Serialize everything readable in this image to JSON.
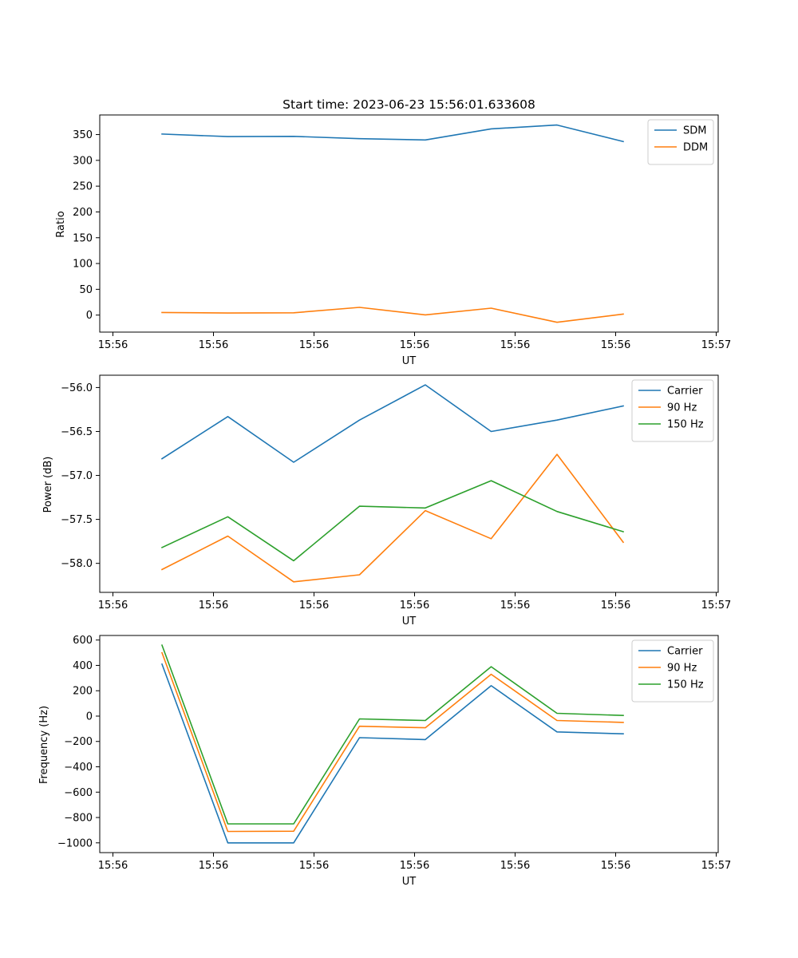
{
  "chart_data": [
    {
      "type": "line",
      "title": "Start time: 2023-06-23 15:56:01.633608",
      "xlabel": "UT",
      "ylabel": "Ratio",
      "x_tick_labels": [
        "15:56",
        "15:56",
        "15:56",
        "15:56",
        "15:56",
        "15:56",
        "15:57"
      ],
      "yticks": [
        0,
        50,
        100,
        150,
        200,
        250,
        300,
        350
      ],
      "ylim": [
        -33,
        388
      ],
      "legend_position": "upper-right",
      "series": [
        {
          "name": "SDM",
          "color": "#1f77b4",
          "values": [
            351,
            346,
            346.5,
            342,
            339.5,
            361,
            368.5,
            336.5
          ]
        },
        {
          "name": "DDM",
          "color": "#ff7f0e",
          "values": [
            5,
            4,
            4.5,
            15,
            0.5,
            13.5,
            -14,
            2
          ]
        }
      ]
    },
    {
      "type": "line",
      "title": "",
      "xlabel": "UT",
      "ylabel": "Power (dB)",
      "x_tick_labels": [
        "15:56",
        "15:56",
        "15:56",
        "15:56",
        "15:56",
        "15:56",
        "15:57"
      ],
      "yticks": [
        -58.0,
        -57.5,
        -57.0,
        -56.5,
        -56.0
      ],
      "ytick_labels": [
        "−58.0",
        "−57.5",
        "−57.0",
        "−56.5",
        "−56.0"
      ],
      "ylim": [
        -58.33,
        -55.86
      ],
      "legend_position": "upper-right",
      "series": [
        {
          "name": "Carrier",
          "color": "#1f77b4",
          "values": [
            -56.81,
            -56.33,
            -56.85,
            -56.37,
            -55.97,
            -56.5,
            -56.37,
            -56.21
          ]
        },
        {
          "name": "90 Hz",
          "color": "#ff7f0e",
          "values": [
            -58.07,
            -57.69,
            -58.21,
            -58.13,
            -57.4,
            -57.72,
            -56.76,
            -57.76
          ]
        },
        {
          "name": "150 Hz",
          "color": "#2ca02c",
          "values": [
            -57.82,
            -57.47,
            -57.97,
            -57.35,
            -57.37,
            -57.06,
            -57.41,
            -57.64
          ]
        }
      ]
    },
    {
      "type": "line",
      "title": "",
      "xlabel": "UT",
      "ylabel": "Frequency (Hz)",
      "x_tick_labels": [
        "15:56",
        "15:56",
        "15:56",
        "15:56",
        "15:56",
        "15:56",
        "15:57"
      ],
      "yticks": [
        -1000,
        -800,
        -600,
        -400,
        -200,
        0,
        200,
        400,
        600
      ],
      "ytick_labels": [
        "−1000",
        "−800",
        "−600",
        "−400",
        "−200",
        "0",
        "200",
        "400",
        "600"
      ],
      "ylim": [
        -1077,
        636
      ],
      "legend_position": "upper-right",
      "series": [
        {
          "name": "Carrier",
          "color": "#1f77b4",
          "values": [
            410,
            -1000,
            -1000,
            -170,
            -185,
            240,
            -125,
            -140
          ]
        },
        {
          "name": "90 Hz",
          "color": "#ff7f0e",
          "values": [
            500,
            -910,
            -908,
            -80,
            -92,
            330,
            -35,
            -50
          ]
        },
        {
          "name": "150 Hz",
          "color": "#2ca02c",
          "values": [
            560,
            -850,
            -850,
            -22,
            -35,
            390,
            22,
            5
          ]
        }
      ]
    }
  ]
}
